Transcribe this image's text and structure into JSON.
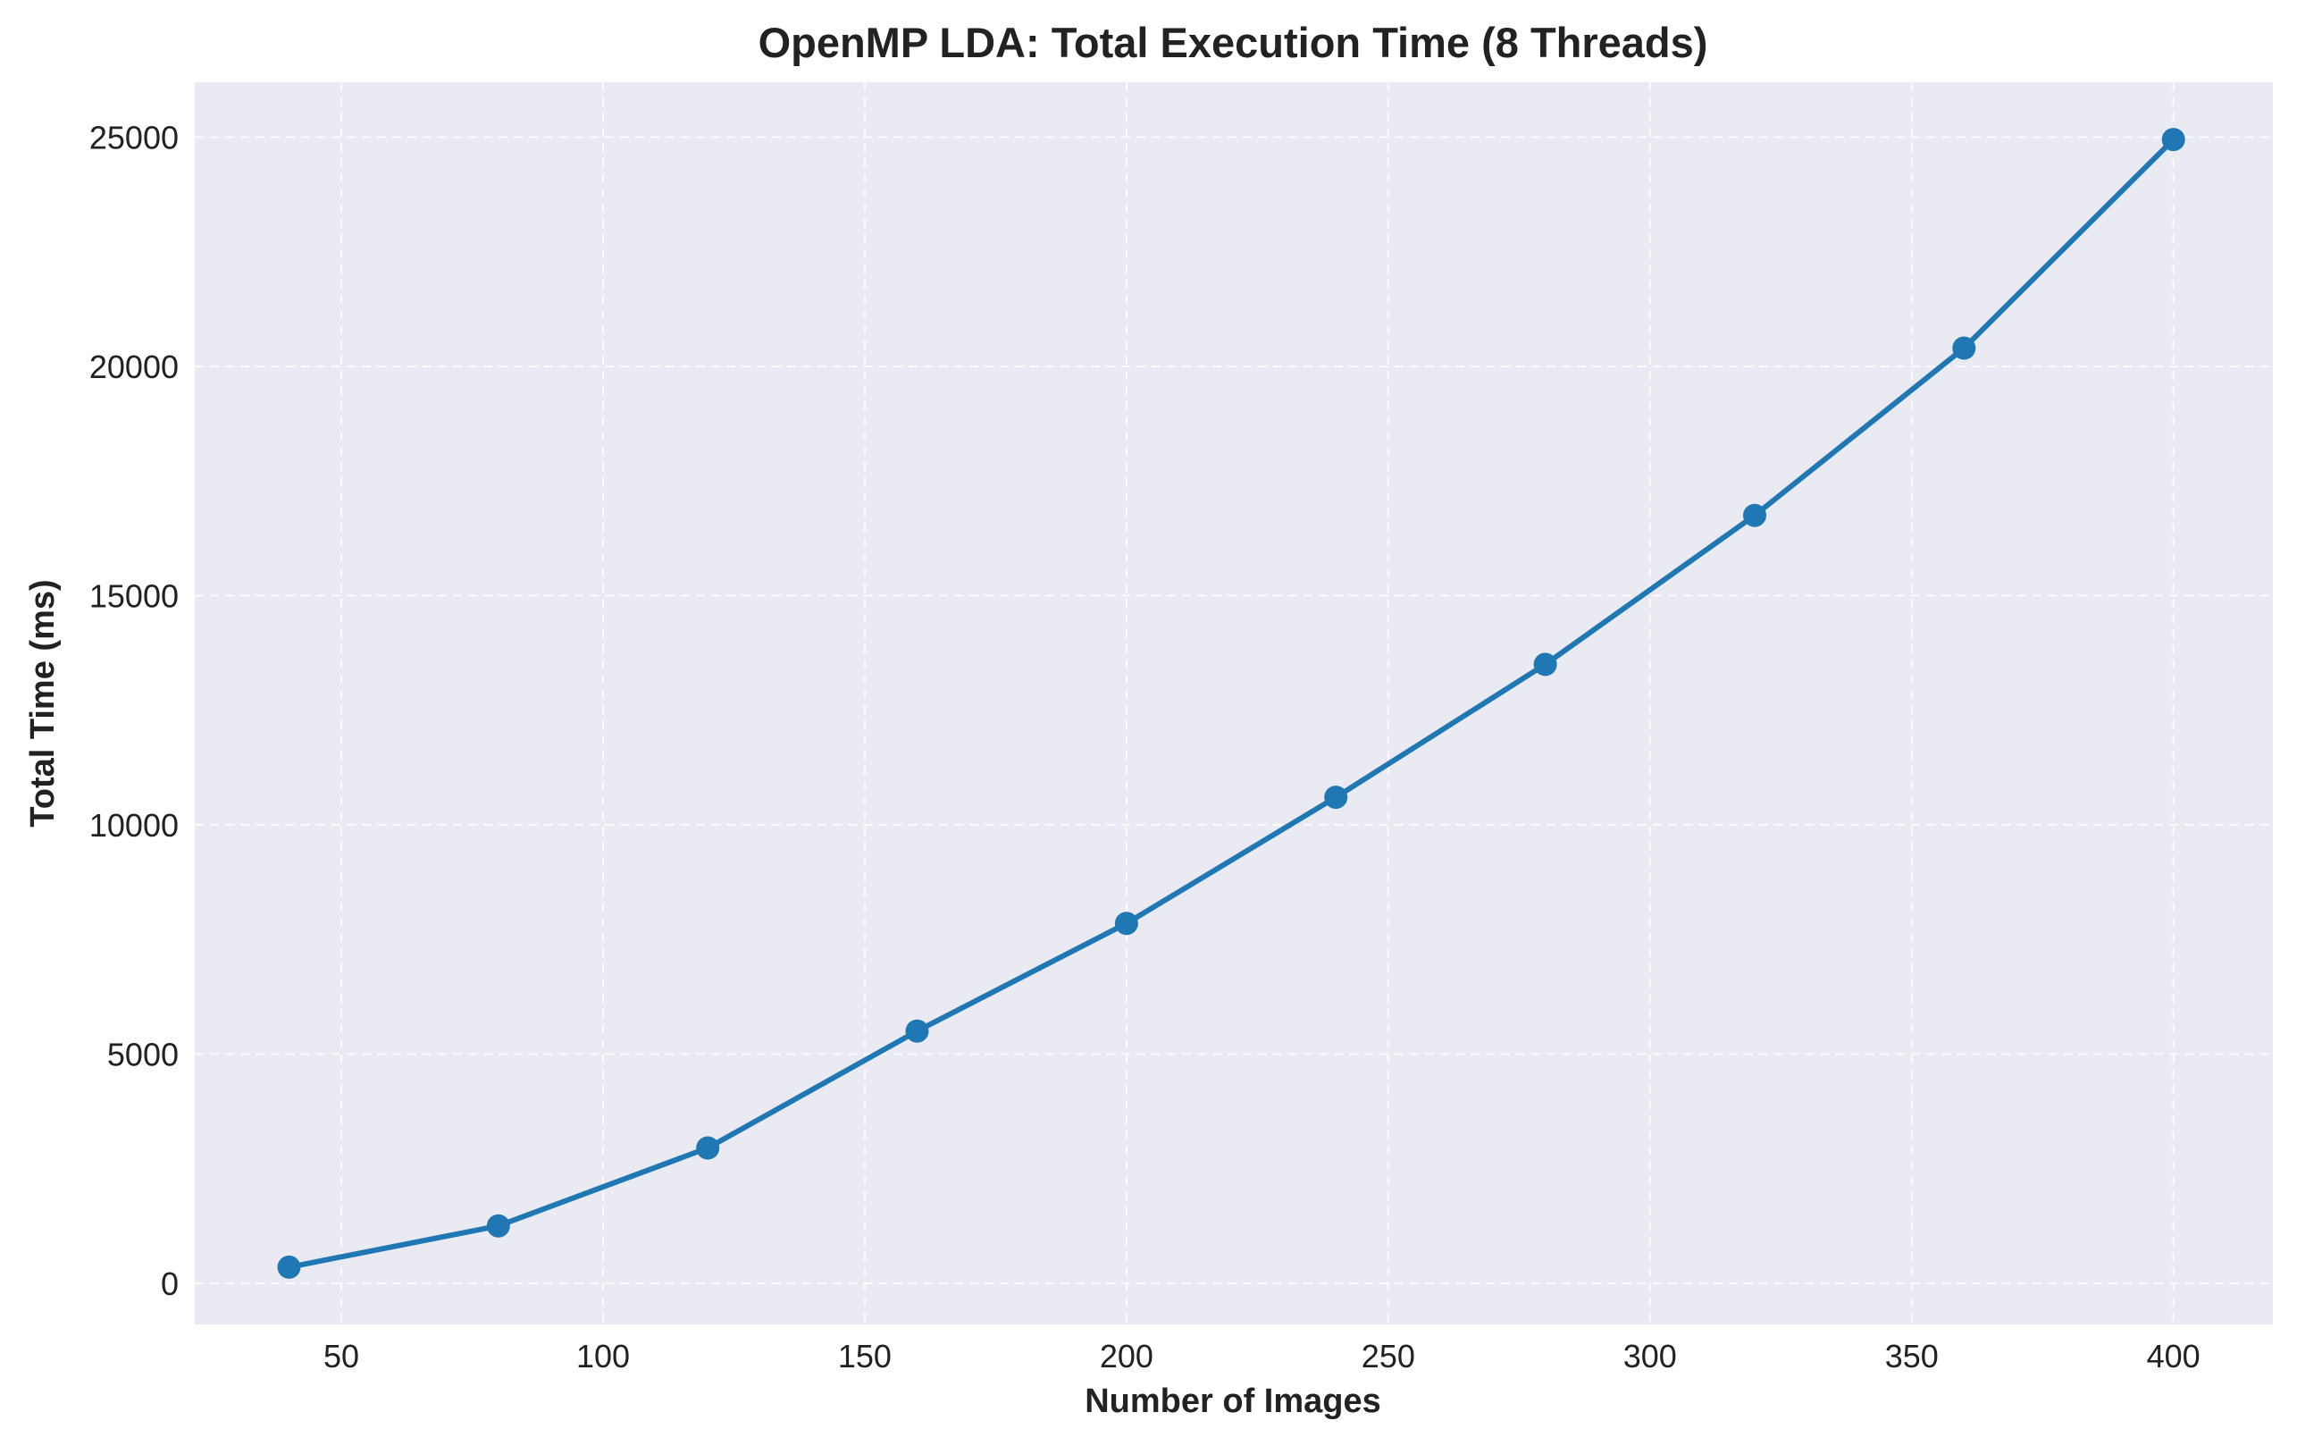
{
  "chart_data": {
    "type": "line",
    "title": "OpenMP LDA: Total Execution Time (8 Threads)",
    "xlabel": "Number of Images",
    "ylabel": "Total Time (ms)",
    "x": [
      40,
      80,
      120,
      160,
      200,
      240,
      280,
      320,
      360,
      400
    ],
    "series": [
      {
        "values": [
          350,
          1250,
          2950,
          5500,
          7850,
          10600,
          13500,
          16750,
          20400,
          24950
        ],
        "color": "#1f77b4",
        "marker": "circle"
      }
    ],
    "xlim": [
      22,
      419
    ],
    "ylim": [
      -900,
      26200
    ],
    "xticks": [
      50,
      100,
      150,
      200,
      250,
      300,
      350,
      400
    ],
    "yticks": [
      0,
      5000,
      10000,
      15000,
      20000,
      25000
    ],
    "grid": true,
    "background_color": "#eaeaf2",
    "grid_style": "dashed"
  }
}
